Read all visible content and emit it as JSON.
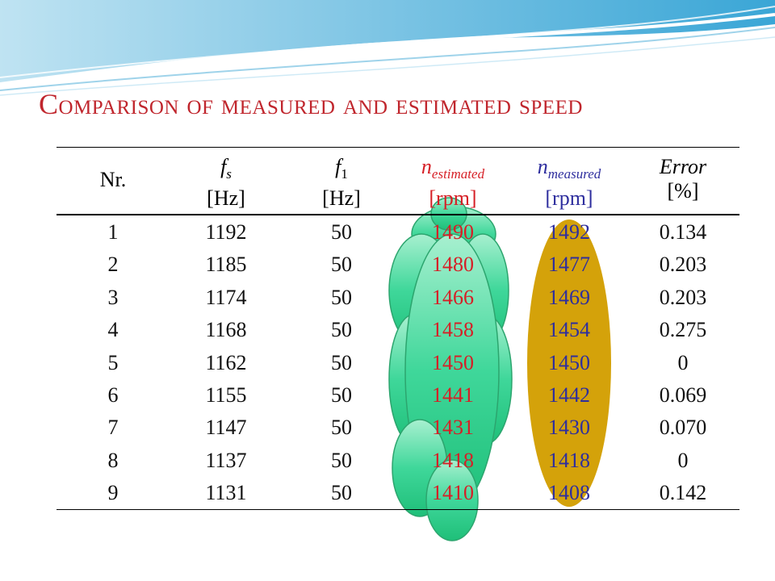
{
  "title": {
    "first_letter": "C",
    "rest": "omparison of measured and estimated speed"
  },
  "table": {
    "columns": [
      {
        "symbol": "Nr.",
        "sub": "",
        "unit": "",
        "style": "plain"
      },
      {
        "symbol": "f",
        "sub": "s",
        "unit": "[Hz]",
        "style": "normal"
      },
      {
        "symbol": "f",
        "sub": "1",
        "unit": "[Hz]",
        "style": "normal"
      },
      {
        "symbol": "n",
        "sub": "estimated",
        "unit": "[rpm]",
        "style": "est"
      },
      {
        "symbol": "n",
        "sub": "measured",
        "unit": "[rpm]",
        "style": "meas"
      },
      {
        "symbol": "Error",
        "sub": "",
        "unit": "[%]",
        "style": "normal"
      }
    ],
    "rows": [
      [
        "1",
        "1192",
        "50",
        "1490",
        "1492",
        "0.134"
      ],
      [
        "2",
        "1185",
        "50",
        "1480",
        "1477",
        "0.203"
      ],
      [
        "3",
        "1174",
        "50",
        "1466",
        "1469",
        "0.203"
      ],
      [
        "4",
        "1168",
        "50",
        "1458",
        "1454",
        "0.275"
      ],
      [
        "5",
        "1162",
        "50",
        "1450",
        "1450",
        "0"
      ],
      [
        "6",
        "1155",
        "50",
        "1441",
        "1442",
        "0.069"
      ],
      [
        "7",
        "1147",
        "50",
        "1431",
        "1430",
        "0.070"
      ],
      [
        "8",
        "1137",
        "50",
        "1418",
        "1418",
        "0"
      ],
      [
        "9",
        "1131",
        "50",
        "1410",
        "1408",
        "0.142"
      ]
    ]
  },
  "colors": {
    "title": "#c0262d",
    "estimated_text": "#d61f26",
    "measured_text": "#2e2e9e",
    "green_highlight": "#2ecc8a",
    "gold_highlight": "#d4a20a"
  }
}
